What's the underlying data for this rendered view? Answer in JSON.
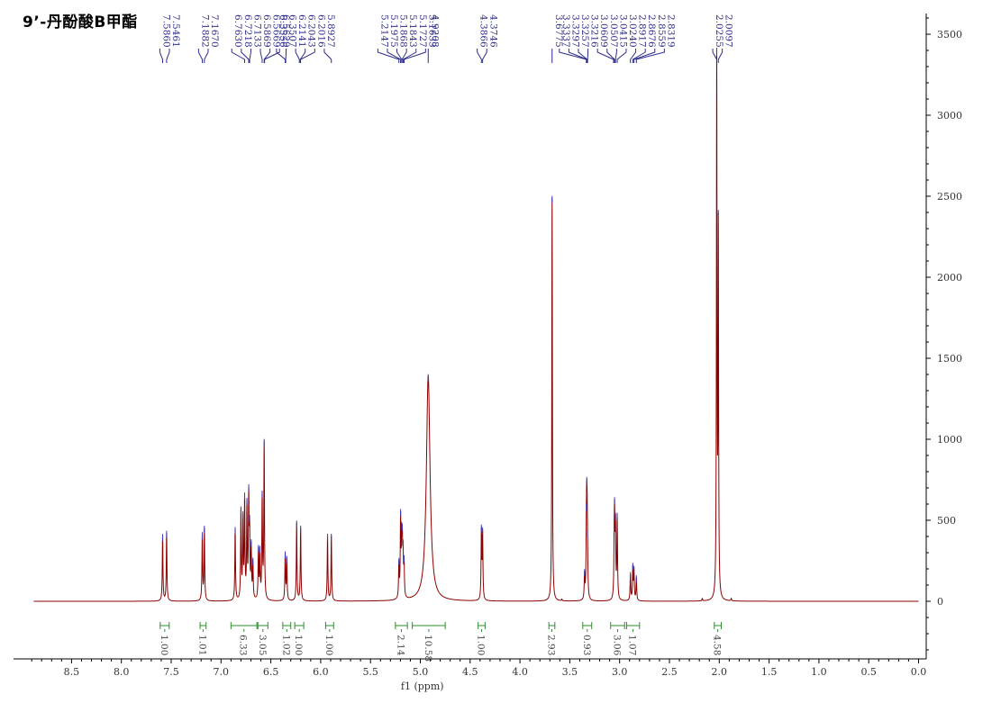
{
  "title": "9’-丹酚酸B甲酯",
  "chart_data": {
    "type": "line",
    "xlabel": "f1 (ppm)",
    "ylabel": "",
    "xlim": [
      8.9,
      0.0
    ],
    "ylim": [
      -350,
      3650
    ],
    "x_ticks": [
      "8.5",
      "8.0",
      "7.5",
      "7.0",
      "6.5",
      "6.0",
      "5.5",
      "5.0",
      "4.5",
      "4.0",
      "3.5",
      "3.0",
      "2.5",
      "2.0",
      "1.5",
      "1.0",
      "0.5",
      "0.0"
    ],
    "y_ticks": [
      "0",
      "500",
      "1000",
      "1500",
      "2000",
      "2500",
      "3000",
      "3500"
    ],
    "colors": {
      "spectrum": "#8b0000",
      "peak_labels": "#2b2b8c",
      "integrals": "#2e8b2e"
    },
    "peaks": [
      {
        "ppm": 7.586,
        "height": 400,
        "width": 0.004
      },
      {
        "ppm": 7.546,
        "height": 420,
        "width": 0.004
      },
      {
        "ppm": 7.188,
        "height": 400,
        "width": 0.004
      },
      {
        "ppm": 7.167,
        "height": 440,
        "width": 0.004
      },
      {
        "ppm": 6.858,
        "height": 440,
        "width": 0.004
      },
      {
        "ppm": 6.8,
        "height": 540,
        "width": 0.004
      },
      {
        "ppm": 6.78,
        "height": 480,
        "width": 0.004
      },
      {
        "ppm": 6.763,
        "height": 600,
        "width": 0.004
      },
      {
        "ppm": 6.74,
        "height": 560,
        "width": 0.004
      },
      {
        "ppm": 6.722,
        "height": 600,
        "width": 0.004
      },
      {
        "ppm": 6.713,
        "height": 380,
        "width": 0.004
      },
      {
        "ppm": 6.697,
        "height": 310,
        "width": 0.004
      },
      {
        "ppm": 6.68,
        "height": 220,
        "width": 0.004
      },
      {
        "ppm": 6.625,
        "height": 300,
        "width": 0.004
      },
      {
        "ppm": 6.61,
        "height": 280,
        "width": 0.004
      },
      {
        "ppm": 6.587,
        "height": 620,
        "width": 0.004
      },
      {
        "ppm": 6.567,
        "height": 960,
        "width": 0.004
      },
      {
        "ppm": 6.356,
        "height": 280,
        "width": 0.004
      },
      {
        "ppm": 6.34,
        "height": 250,
        "width": 0.004
      },
      {
        "ppm": 6.241,
        "height": 480,
        "width": 0.004
      },
      {
        "ppm": 6.201,
        "height": 450,
        "width": 0.004
      },
      {
        "ppm": 5.931,
        "height": 400,
        "width": 0.004
      },
      {
        "ppm": 5.893,
        "height": 400,
        "width": 0.004
      },
      {
        "ppm": 5.215,
        "height": 210,
        "width": 0.004
      },
      {
        "ppm": 5.198,
        "height": 480,
        "width": 0.004
      },
      {
        "ppm": 5.187,
        "height": 300,
        "width": 0.004
      },
      {
        "ppm": 5.181,
        "height": 280,
        "width": 0.004
      },
      {
        "ppm": 5.173,
        "height": 240,
        "width": 0.004
      },
      {
        "ppm": 5.163,
        "height": 200,
        "width": 0.004
      },
      {
        "ppm": 4.9208,
        "height": 1390,
        "width": 0.022
      },
      {
        "ppm": 4.387,
        "height": 420,
        "width": 0.004
      },
      {
        "ppm": 4.375,
        "height": 400,
        "width": 0.004
      },
      {
        "ppm": 3.6775,
        "height": 2490,
        "width": 0.0035
      },
      {
        "ppm": 3.58,
        "height": 10,
        "width": 0.004
      },
      {
        "ppm": 3.352,
        "height": 150,
        "width": 0.004
      },
      {
        "ppm": 3.3337,
        "height": 300,
        "width": 0.004
      },
      {
        "ppm": 3.3297,
        "height": 410,
        "width": 0.004
      },
      {
        "ppm": 3.3257,
        "height": 320,
        "width": 0.004
      },
      {
        "ppm": 3.3215,
        "height": 160,
        "width": 0.004
      },
      {
        "ppm": 3.055,
        "height": 200,
        "width": 0.004
      },
      {
        "ppm": 3.0507,
        "height": 460,
        "width": 0.004
      },
      {
        "ppm": 3.0415,
        "height": 420,
        "width": 0.004
      },
      {
        "ppm": 3.024,
        "height": 500,
        "width": 0.004
      },
      {
        "ppm": 2.8917,
        "height": 160,
        "width": 0.004
      },
      {
        "ppm": 2.8676,
        "height": 200,
        "width": 0.004
      },
      {
        "ppm": 2.8559,
        "height": 180,
        "width": 0.004
      },
      {
        "ppm": 2.8319,
        "height": 140,
        "width": 0.004
      },
      {
        "ppm": 2.17,
        "height": 15,
        "width": 0.004
      },
      {
        "ppm": 2.0255,
        "height": 3300,
        "width": 0.0035
      },
      {
        "ppm": 2.0097,
        "height": 2250,
        "width": 0.0035
      },
      {
        "ppm": 1.88,
        "height": 15,
        "width": 0.004
      }
    ],
    "peak_label_groups": [
      {
        "labels": [
          "7.5860",
          "7.5461"
        ],
        "targets": [
          7.586,
          7.546
        ]
      },
      {
        "labels": [
          "7.1882",
          "7.1670"
        ],
        "targets": [
          7.188,
          7.167
        ]
      },
      {
        "labels": [
          "6.7630",
          "6.7218",
          "6.7133",
          "6.5869",
          "6.5669",
          "6.5629"
        ],
        "targets": [
          6.763,
          6.722,
          6.713,
          6.587,
          6.567,
          6.563
        ]
      },
      {
        "labels": [
          "6.3556",
          "6.3507",
          "6.2141",
          "6.2043",
          "6.2016",
          "5.8927"
        ],
        "targets": [
          6.356,
          6.351,
          6.214,
          6.204,
          6.202,
          5.893
        ]
      },
      {
        "labels": [
          "5.2147",
          "5.1975",
          "5.1868",
          "5.1843",
          "5.1727",
          "5.1633"
        ],
        "targets": [
          5.215,
          5.198,
          5.187,
          5.184,
          5.173,
          5.163
        ]
      },
      {
        "labels": [
          "4.9208"
        ],
        "targets": [
          4.9208
        ]
      },
      {
        "labels": [
          "4.3866",
          "4.3746"
        ],
        "targets": [
          4.387,
          4.375
        ]
      },
      {
        "labels": [
          "3.6775"
        ],
        "targets": [
          3.6775
        ]
      },
      {
        "labels": [
          "3.3337",
          "3.3297",
          "3.3257",
          "3.3216",
          "3.0609",
          "3.0507",
          "3.0415",
          "3.0240",
          "2.8917",
          "2.8676",
          "2.8559",
          "2.8319"
        ],
        "targets": [
          3.3337,
          3.3297,
          3.3257,
          3.3216,
          3.0609,
          3.0507,
          3.0415,
          3.024,
          2.8917,
          2.8676,
          2.8559,
          2.8319
        ]
      },
      {
        "labels": [
          "2.0255",
          "2.0097"
        ],
        "targets": [
          2.0255,
          2.0097
        ]
      }
    ],
    "integrals": [
      {
        "from": 7.61,
        "to": 7.52,
        "value": "1.00"
      },
      {
        "from": 7.21,
        "to": 7.15,
        "value": "1.01"
      },
      {
        "from": 6.9,
        "to": 6.64,
        "value": "6.33"
      },
      {
        "from": 6.63,
        "to": 6.53,
        "value": "3.05"
      },
      {
        "from": 6.38,
        "to": 6.3,
        "value": "1.02"
      },
      {
        "from": 6.26,
        "to": 6.17,
        "value": "1.00"
      },
      {
        "from": 5.95,
        "to": 5.87,
        "value": "1.00"
      },
      {
        "from": 5.25,
        "to": 5.13,
        "value": "2.14"
      },
      {
        "from": 5.08,
        "to": 4.75,
        "value": "10.58"
      },
      {
        "from": 4.42,
        "to": 4.35,
        "value": "1.00"
      },
      {
        "from": 3.71,
        "to": 3.65,
        "value": "2.93"
      },
      {
        "from": 3.37,
        "to": 3.28,
        "value": "0.93"
      },
      {
        "from": 3.09,
        "to": 2.95,
        "value": "3.06"
      },
      {
        "from": 2.93,
        "to": 2.8,
        "value": "1.07"
      },
      {
        "from": 2.05,
        "to": 1.98,
        "value": "4.58"
      }
    ]
  }
}
